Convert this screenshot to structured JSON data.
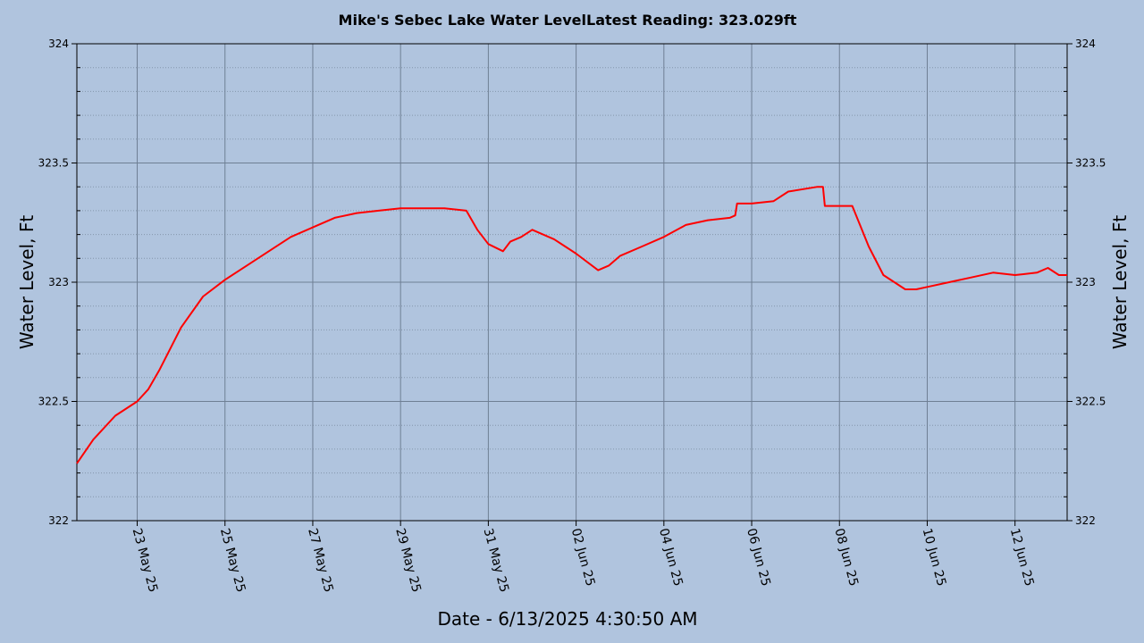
{
  "chart_data": {
    "type": "line",
    "title": "Mike's Sebec Lake Water LevelLatest Reading: 323.029ft",
    "xlabel": "Date - 6/13/2025 4:30:50 AM",
    "ylabel": "Water Level, Ft",
    "ylabel_right": "Water Level, Ft",
    "ylim": [
      322,
      324
    ],
    "yticks": [
      "324",
      "323.5",
      "323",
      "322.5",
      "322"
    ],
    "xlim": [
      "2025-05-21T15:00",
      "2025-06-13T04:30"
    ],
    "xticks": [
      "23 May 25",
      "25 May 25",
      "27 May 25",
      "29 May 25",
      "31 May 25",
      "02 Jun 25",
      "04 Jun 25",
      "06 Jun 25",
      "08 Jun 25",
      "10 Jun 25",
      "12 Jun 25"
    ],
    "xtick_dates": [
      "2025-05-23",
      "2025-05-25",
      "2025-05-27",
      "2025-05-29",
      "2025-05-31",
      "2025-06-02",
      "2025-06-04",
      "2025-06-06",
      "2025-06-08",
      "2025-06-10",
      "2025-06-12"
    ],
    "grid": true,
    "line_color": "#ff0000",
    "background": "#b0c4de",
    "series": [
      {
        "x": [
          "2025-05-21T15:00",
          "2025-05-22T00:00",
          "2025-05-22T12:00",
          "2025-05-23T00:00",
          "2025-05-23T06:00",
          "2025-05-23T12:00",
          "2025-05-24T00:00",
          "2025-05-24T12:00",
          "2025-05-25T00:00",
          "2025-05-25T12:00",
          "2025-05-26T00:00",
          "2025-05-26T12:00",
          "2025-05-27T00:00",
          "2025-05-27T12:00",
          "2025-05-28T00:00",
          "2025-05-28T12:00",
          "2025-05-29T00:00",
          "2025-05-29T12:00",
          "2025-05-30T00:00",
          "2025-05-30T12:00",
          "2025-05-30T18:00",
          "2025-05-31T00:00",
          "2025-05-31T08:00",
          "2025-05-31T12:00",
          "2025-05-31T18:00",
          "2025-06-01T00:00",
          "2025-06-01T12:00",
          "2025-06-02T00:00",
          "2025-06-02T12:00",
          "2025-06-02T18:00",
          "2025-06-03T00:00",
          "2025-06-03T12:00",
          "2025-06-04T00:00",
          "2025-06-04T12:00",
          "2025-06-05T00:00",
          "2025-06-05T12:00",
          "2025-06-05T15:00",
          "2025-06-05T16:00",
          "2025-06-06T00:00",
          "2025-06-06T12:00",
          "2025-06-06T20:00",
          "2025-06-07T12:00",
          "2025-06-07T15:00",
          "2025-06-07T16:00",
          "2025-06-08T00:00",
          "2025-06-08T07:00",
          "2025-06-08T16:00",
          "2025-06-09T00:00",
          "2025-06-09T12:00",
          "2025-06-09T18:00",
          "2025-06-10T00:00",
          "2025-06-10T12:00",
          "2025-06-11T00:00",
          "2025-06-11T12:00",
          "2025-06-12T00:00",
          "2025-06-12T12:00",
          "2025-06-12T18:00",
          "2025-06-13T00:00",
          "2025-06-13T04:30"
        ],
        "y": [
          322.24,
          322.34,
          322.44,
          322.5,
          322.55,
          322.63,
          322.81,
          322.94,
          323.01,
          323.07,
          323.13,
          323.19,
          323.23,
          323.27,
          323.29,
          323.3,
          323.31,
          323.31,
          323.31,
          323.3,
          323.22,
          323.16,
          323.13,
          323.17,
          323.19,
          323.22,
          323.18,
          323.12,
          323.05,
          323.07,
          323.11,
          323.15,
          323.19,
          323.24,
          323.26,
          323.27,
          323.28,
          323.33,
          323.33,
          323.34,
          323.38,
          323.4,
          323.4,
          323.32,
          323.32,
          323.32,
          323.15,
          323.03,
          322.97,
          322.97,
          322.98,
          323.0,
          323.02,
          323.04,
          323.03,
          323.04,
          323.06,
          323.03,
          323.03
        ]
      }
    ]
  }
}
